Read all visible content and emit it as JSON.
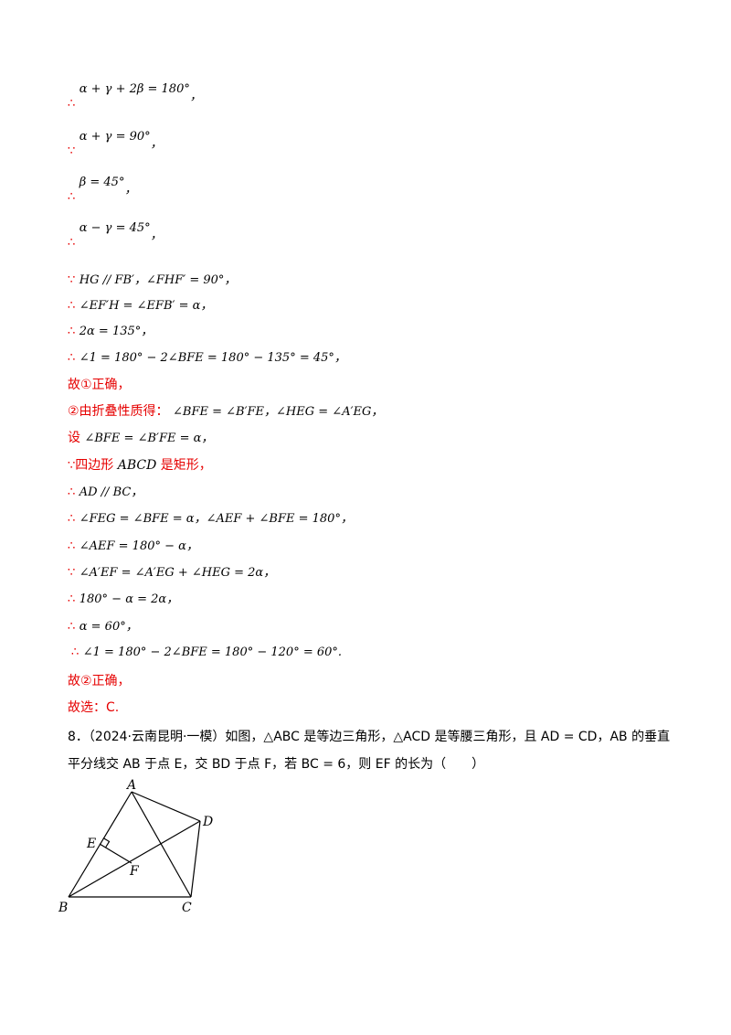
{
  "symbols": {
    "therefore": "∴",
    "because": "∵"
  },
  "steps": [
    {
      "sym": "∴",
      "expr": "α + γ + 2β = 180°",
      "tail": "，"
    },
    {
      "sym": "∵",
      "expr": "α + γ = 90°",
      "tail": "，"
    },
    {
      "sym": "∴",
      "expr": "β = 45°",
      "tail": "，"
    },
    {
      "sym": "∴",
      "expr": "α − γ = 45°",
      "tail": "，"
    }
  ],
  "proof1": [
    {
      "sym": "∵",
      "expr": "HG // FB′，∠FHF′ = 90°",
      "tail": "，"
    },
    {
      "sym": "∴",
      "expr": "∠EF′H = ∠EFB′ = α",
      "tail": "，"
    },
    {
      "sym": "∴",
      "expr": "2α = 135°",
      "tail": "，"
    },
    {
      "sym": "∴",
      "expr": "∠1 = 180° − 2∠BFE = 180° − 135° = 45°",
      "tail": "，"
    }
  ],
  "conclusion1": "故①正确，",
  "part2_intro": {
    "text": "②由折叠性质得：",
    "expr": "∠BFE = ∠B′FE，∠HEG = ∠A′EG",
    "tail": "，"
  },
  "part2_let": {
    "text": "设",
    "expr": "∠BFE = ∠B′FE = α",
    "tail": "，"
  },
  "part2_rect": {
    "sym": "∵",
    "text1": "四边形",
    "expr": "ABCD",
    "text2": "是矩形，"
  },
  "proof2": [
    {
      "sym": "∴",
      "expr": "AD // BC",
      "tail": "，"
    },
    {
      "sym": "∴",
      "expr": "∠FEG = ∠BFE = α，∠AEF + ∠BFE = 180°",
      "tail": "，"
    },
    {
      "sym": "∴",
      "expr": "∠AEF = 180° − α",
      "tail": "，"
    },
    {
      "sym": "∵",
      "expr": "∠A′EF = ∠A′EG + ∠HEG = 2α",
      "tail": "，"
    },
    {
      "sym": "∴",
      "expr": "180° − α = 2α",
      "tail": "，"
    },
    {
      "sym": "∴",
      "expr": "α = 60°",
      "tail": "，"
    },
    {
      "sym": "∴",
      "expr": "∠1 = 180° − 2∠BFE = 180° − 120° = 60°",
      "tail": "."
    }
  ],
  "conclusion2": "故②正确，",
  "answer": "故选：C.",
  "question": {
    "line1": "8．（2024·云南昆明·一模）如图，△ABC 是等边三角形，△ACD 是等腰三角形，且 AD = CD，AB 的垂直",
    "line2": "平分线交 AB 于点 E，交 BD 于点 F，若 BC = 6，则 EF 的长为（　　）"
  },
  "figure": {
    "labels": {
      "A": "A",
      "B": "B",
      "C": "C",
      "D": "D",
      "E": "E",
      "F": "F"
    }
  }
}
